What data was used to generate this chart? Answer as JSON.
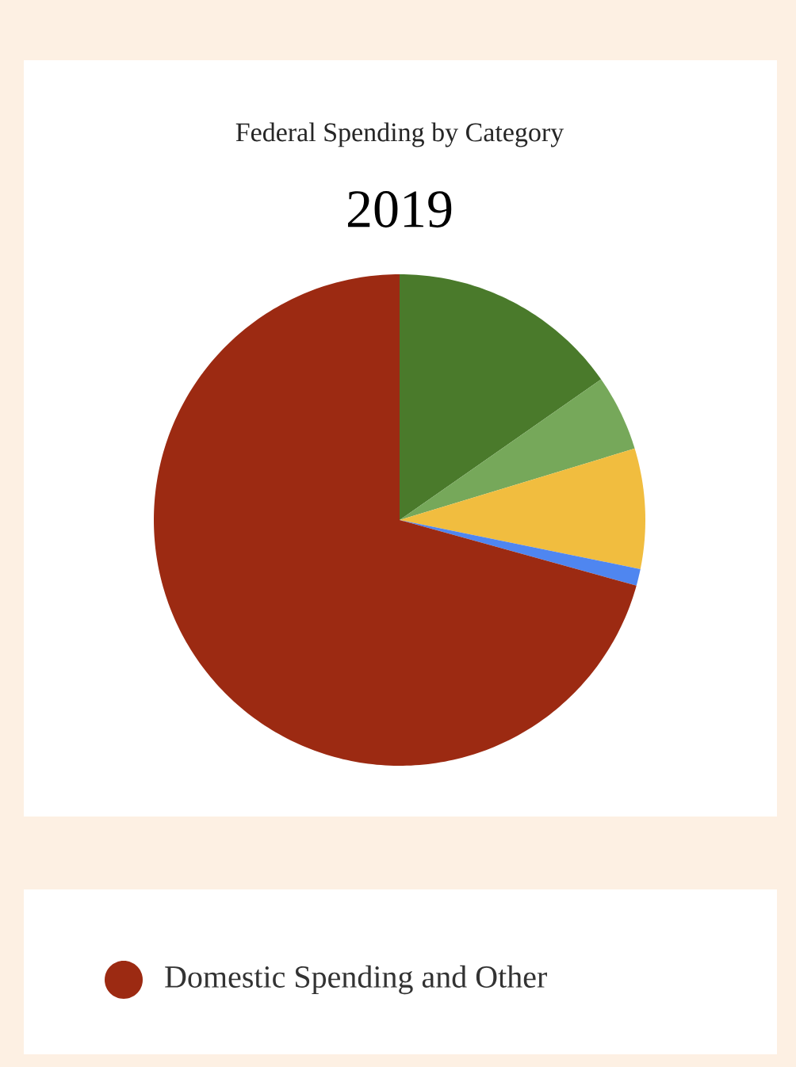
{
  "chart_data": {
    "type": "pie",
    "title": "Federal Spending by Category",
    "subtitle": "2019",
    "categories": [
      null,
      null,
      null,
      null,
      "Domestic Spending and Other"
    ],
    "values": [
      15.3,
      5.0,
      7.9,
      1.1,
      70.7
    ],
    "colors": [
      "#4a7a2b",
      "#76a85a",
      "#f1bd3f",
      "#4f86f0",
      "#9c2a12"
    ],
    "legend": "bottom"
  }
}
